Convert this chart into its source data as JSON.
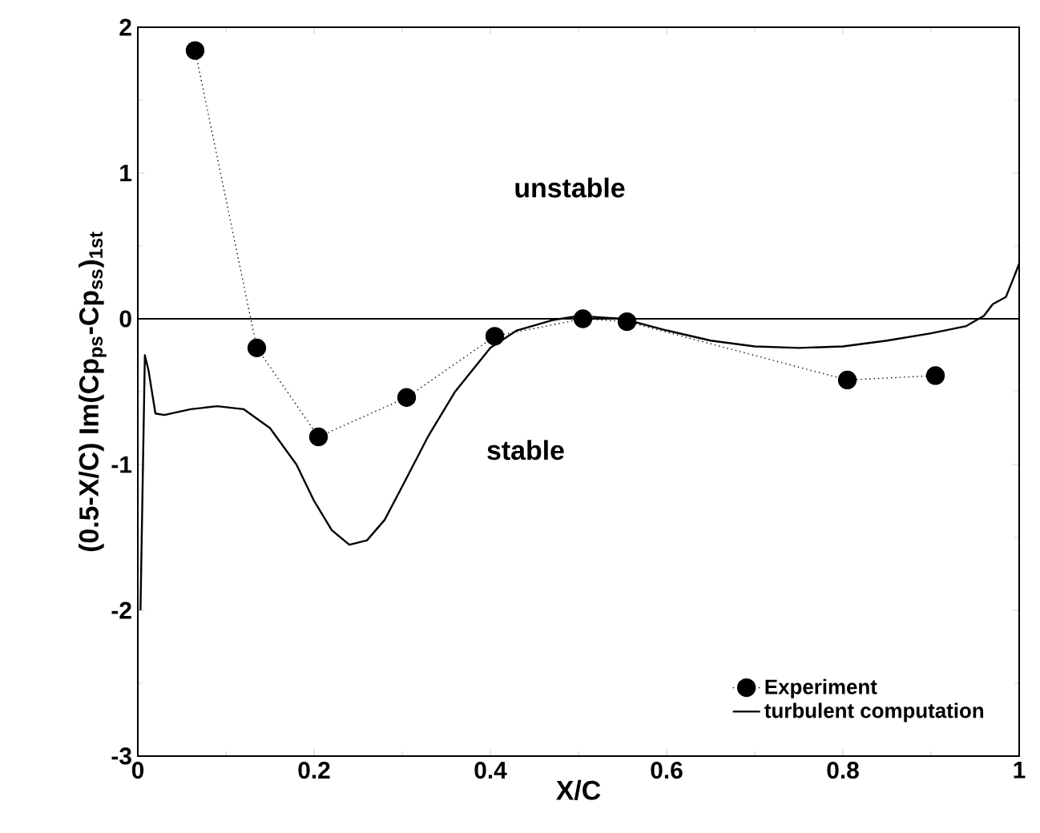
{
  "chart_data": {
    "type": "line",
    "xlabel": "X/C",
    "ylabel": "(0.5-X/C) Im(Cp$_{ps}$-Cp$_{ss}$)$_{1st}$",
    "xlim": [
      0,
      1
    ],
    "ylim": [
      -3,
      2
    ],
    "xticks": [
      0,
      0.2,
      0.4,
      0.6,
      0.8,
      1
    ],
    "yticks": [
      -3,
      -2,
      -1,
      0,
      1,
      2
    ],
    "legend": "bottom right",
    "grid": false,
    "annotations": [
      "unstable",
      "stable"
    ],
    "ref_lines": [
      {
        "axis": "y",
        "value": 0,
        "color": "#000000",
        "line_style": "solid"
      }
    ],
    "series": [
      {
        "name": "Experiment",
        "color": "#000000",
        "marker": "circle",
        "line_style": "dotted",
        "x": [
          0.065,
          0.135,
          0.205,
          0.305,
          0.405,
          0.505,
          0.555,
          0.805,
          0.905
        ],
        "values": [
          1.84,
          -0.2,
          -0.81,
          -0.54,
          -0.12,
          0.0,
          -0.02,
          -0.42,
          -0.39
        ]
      },
      {
        "name": "turbulent computation",
        "color": "#000000",
        "marker": "none",
        "line_style": "solid",
        "x": [
          0.003,
          0.008,
          0.012,
          0.02,
          0.03,
          0.06,
          0.09,
          0.12,
          0.15,
          0.18,
          0.2,
          0.22,
          0.24,
          0.26,
          0.28,
          0.3,
          0.33,
          0.36,
          0.4,
          0.43,
          0.47,
          0.5,
          0.55,
          0.6,
          0.65,
          0.7,
          0.75,
          0.8,
          0.85,
          0.9,
          0.94,
          0.96,
          0.97,
          0.985,
          0.995,
          1.0
        ],
        "values": [
          -2.0,
          -0.25,
          -0.35,
          -0.65,
          -0.66,
          -0.62,
          -0.6,
          -0.62,
          -0.75,
          -1.0,
          -1.25,
          -1.45,
          -1.55,
          -1.52,
          -1.38,
          -1.15,
          -0.8,
          -0.5,
          -0.2,
          -0.08,
          -0.01,
          0.02,
          0.0,
          -0.08,
          -0.15,
          -0.19,
          -0.2,
          -0.19,
          -0.15,
          -0.1,
          -0.05,
          0.02,
          0.1,
          0.15,
          0.3,
          0.38
        ]
      }
    ]
  }
}
